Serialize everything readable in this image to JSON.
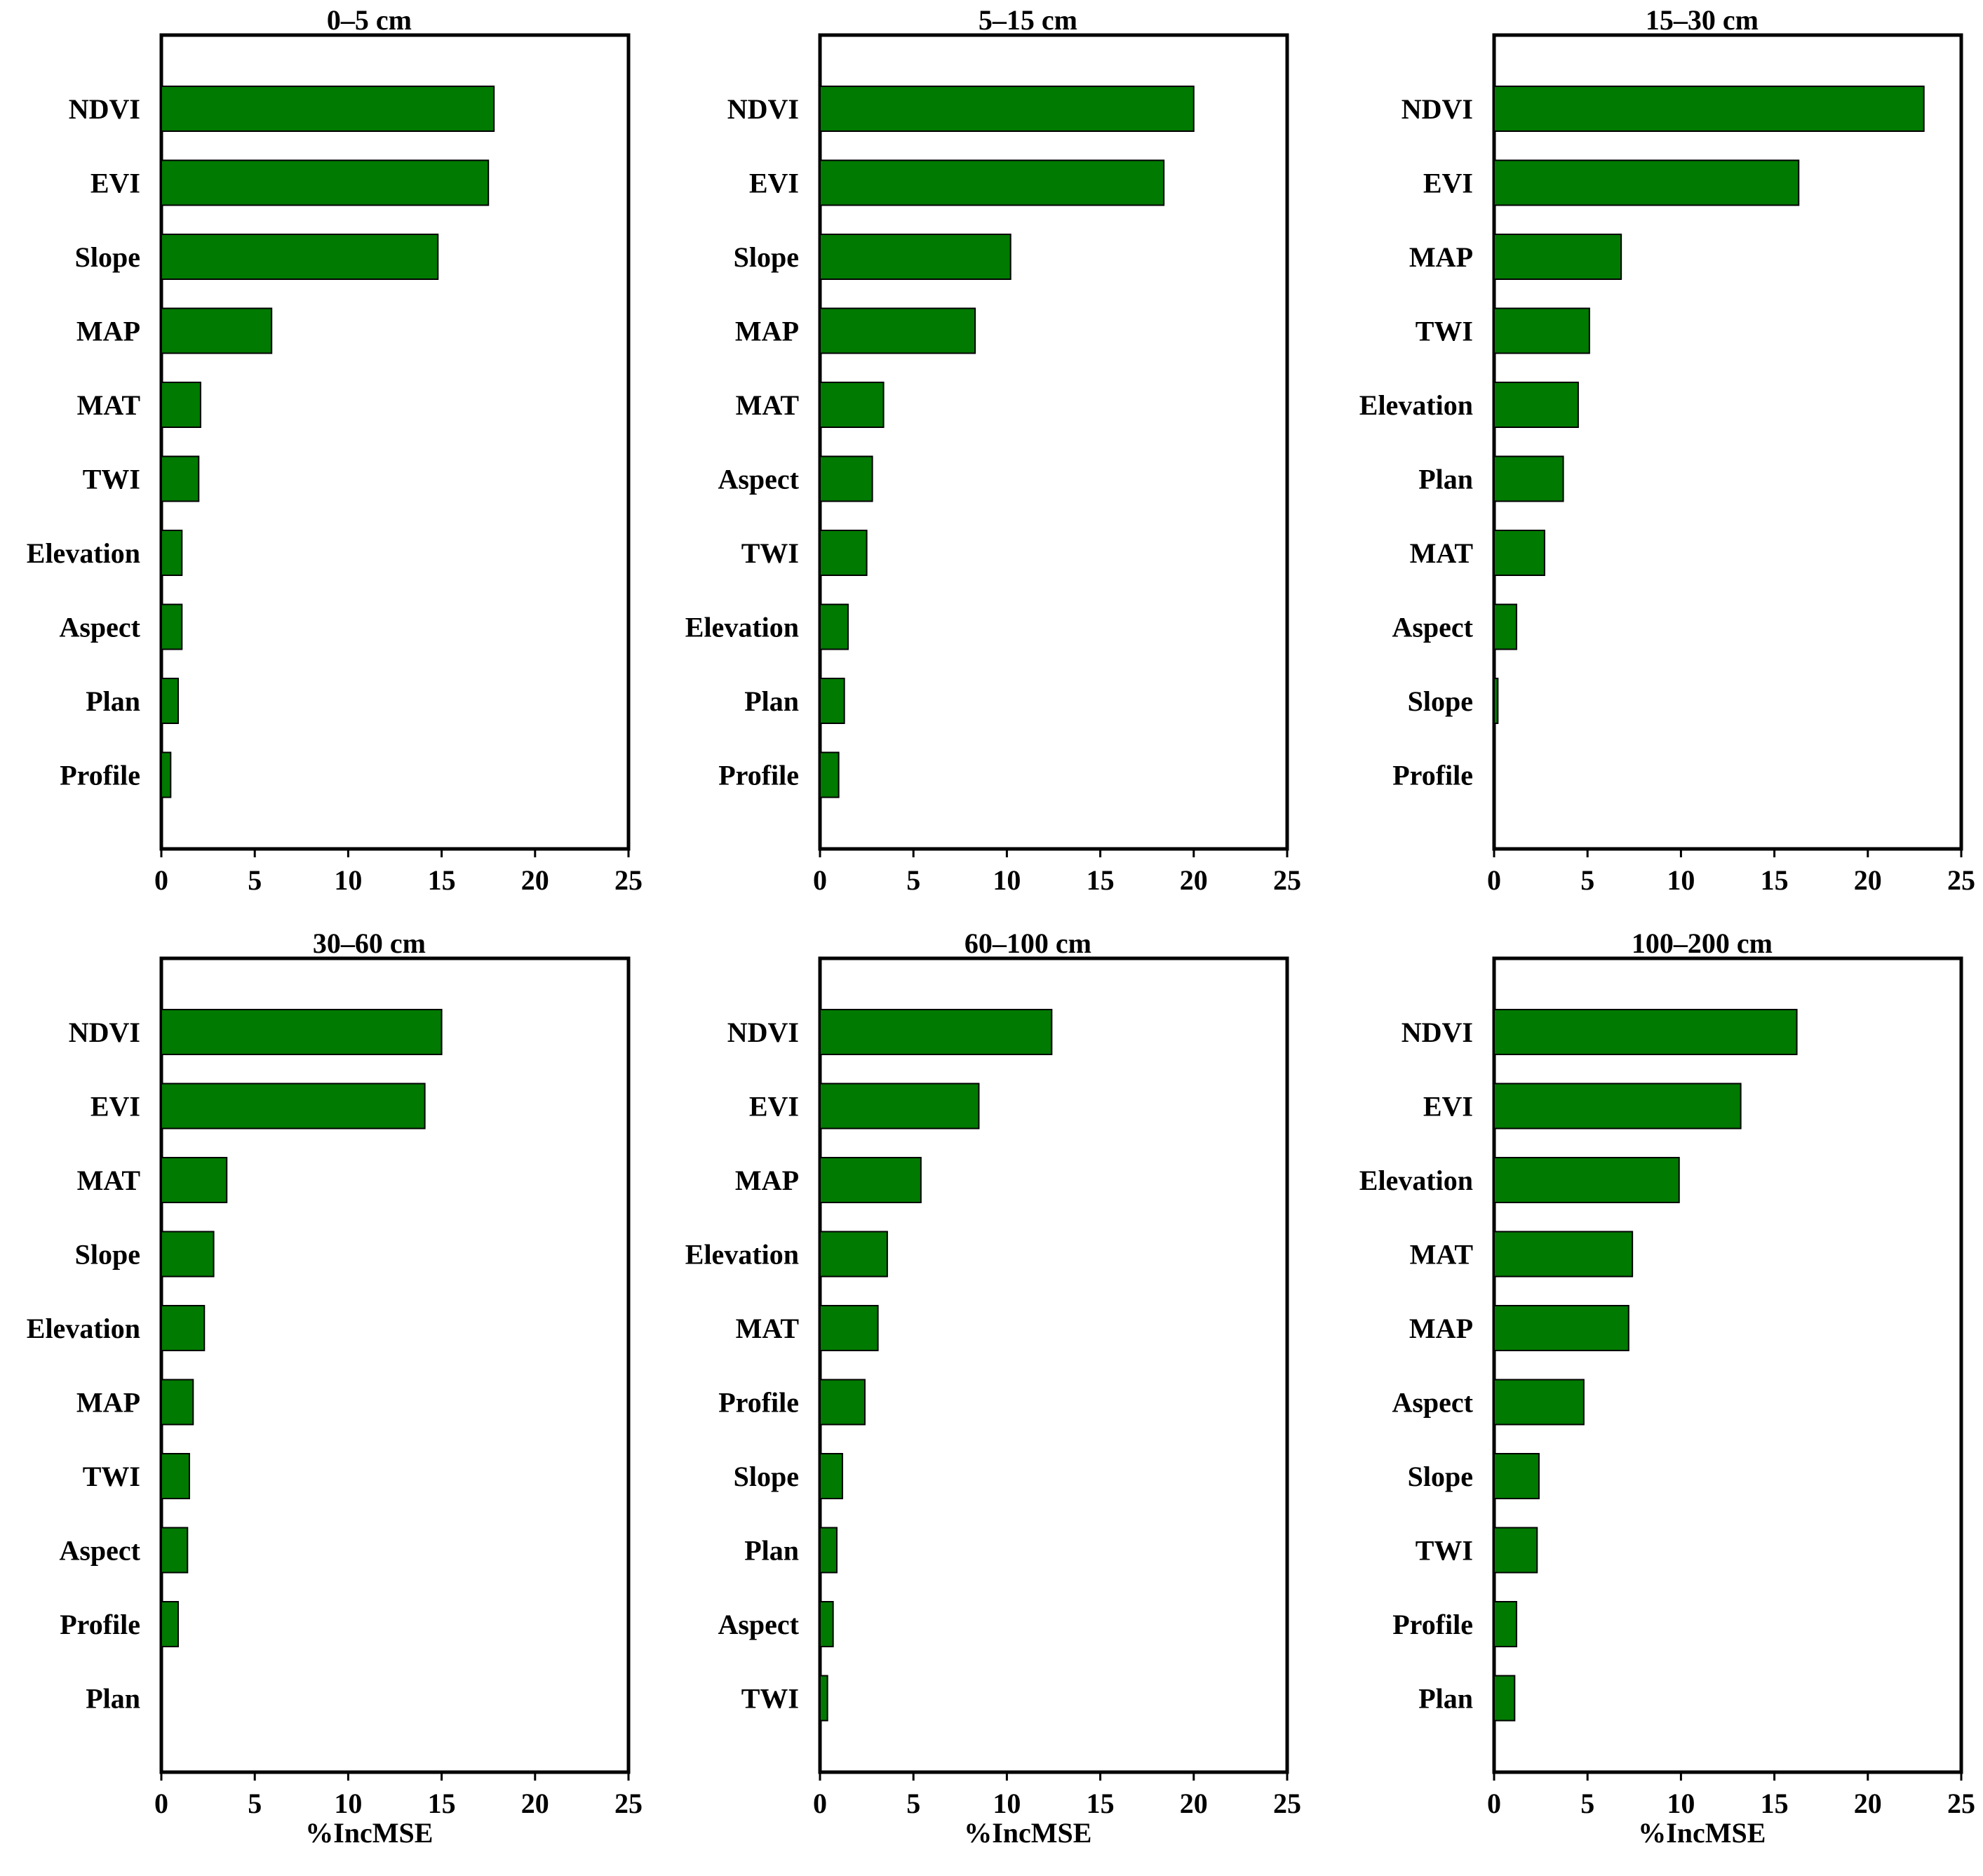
{
  "chart_data": [
    {
      "type": "bar",
      "orientation": "horizontal",
      "title": "0–5 cm",
      "categories": [
        "NDVI",
        "EVI",
        "Slope",
        "MAP",
        "MAT",
        "TWI",
        "Elevation",
        "Aspect",
        "Plan",
        "Profile"
      ],
      "values": [
        17.8,
        17.5,
        14.8,
        5.9,
        2.1,
        2.0,
        1.1,
        1.1,
        0.9,
        0.5
      ],
      "xlim": [
        0,
        25
      ],
      "xticks": [
        "0",
        "5",
        "10",
        "15",
        "20",
        "25"
      ],
      "xlabel": "",
      "color": "#007a00"
    },
    {
      "type": "bar",
      "orientation": "horizontal",
      "title": "5–15 cm",
      "categories": [
        "NDVI",
        "EVI",
        "Slope",
        "MAP",
        "MAT",
        "Aspect",
        "TWI",
        "Elevation",
        "Plan",
        "Profile"
      ],
      "values": [
        20.0,
        18.4,
        10.2,
        8.3,
        3.4,
        2.8,
        2.5,
        1.5,
        1.3,
        1.0
      ],
      "xlim": [
        0,
        25
      ],
      "xticks": [
        "0",
        "5",
        "10",
        "15",
        "20",
        "25"
      ],
      "xlabel": "",
      "color": "#007a00"
    },
    {
      "type": "bar",
      "orientation": "horizontal",
      "title": "15–30 cm",
      "categories": [
        "NDVI",
        "EVI",
        "MAP",
        "TWI",
        "Elevation",
        "Plan",
        "MAT",
        "Aspect",
        "Slope",
        "Profile"
      ],
      "values": [
        23.0,
        16.3,
        6.8,
        5.1,
        4.5,
        3.7,
        2.7,
        1.2,
        0.2,
        0
      ],
      "xlim": [
        0,
        25
      ],
      "xticks": [
        "0",
        "5",
        "10",
        "15",
        "20",
        "25"
      ],
      "xlabel": "",
      "color": "#007a00"
    },
    {
      "type": "bar",
      "orientation": "horizontal",
      "title": "30–60 cm",
      "categories": [
        "NDVI",
        "EVI",
        "MAT",
        "Slope",
        "Elevation",
        "MAP",
        "TWI",
        "Aspect",
        "Profile",
        "Plan"
      ],
      "values": [
        15.0,
        14.1,
        3.5,
        2.8,
        2.3,
        1.7,
        1.5,
        1.4,
        0.9,
        0
      ],
      "xlim": [
        0,
        25
      ],
      "xticks": [
        "0",
        "5",
        "10",
        "15",
        "20",
        "25"
      ],
      "xlabel": "%IncMSE",
      "color": "#007a00"
    },
    {
      "type": "bar",
      "orientation": "horizontal",
      "title": "60–100 cm",
      "categories": [
        "NDVI",
        "EVI",
        "MAP",
        "Elevation",
        "MAT",
        "Profile",
        "Slope",
        "Plan",
        "Aspect",
        "TWI"
      ],
      "values": [
        12.4,
        8.5,
        5.4,
        3.6,
        3.1,
        2.4,
        1.2,
        0.9,
        0.7,
        0.4
      ],
      "xlim": [
        0,
        25
      ],
      "xticks": [
        "0",
        "5",
        "10",
        "15",
        "20",
        "25"
      ],
      "xlabel": "%IncMSE",
      "color": "#007a00"
    },
    {
      "type": "bar",
      "orientation": "horizontal",
      "title": "100–200 cm",
      "categories": [
        "NDVI",
        "EVI",
        "Elevation",
        "MAT",
        "MAP",
        "Aspect",
        "Slope",
        "TWI",
        "Profile",
        "Plan"
      ],
      "values": [
        16.2,
        13.2,
        9.9,
        7.4,
        7.2,
        4.8,
        2.4,
        2.3,
        1.2,
        1.1
      ],
      "xlim": [
        0,
        25
      ],
      "xticks": [
        "0",
        "5",
        "10",
        "15",
        "20",
        "25"
      ],
      "xlabel": "%IncMSE",
      "color": "#007a00"
    }
  ]
}
